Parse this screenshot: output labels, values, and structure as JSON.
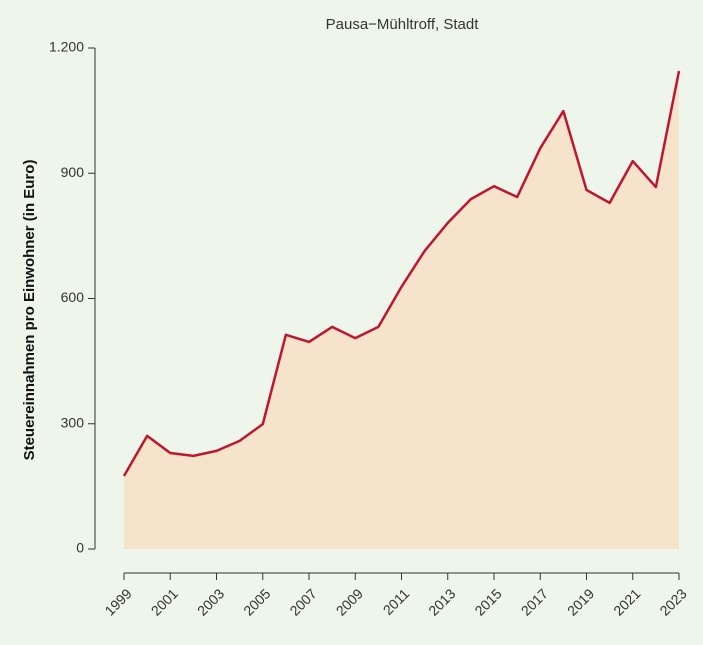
{
  "chart_data": {
    "type": "area",
    "title": "Pausa−Mühltroff, Stadt",
    "y_label": "Steuereinnahmen pro Einwohner (in Euro)",
    "x": [
      1999,
      2000,
      2001,
      2002,
      2003,
      2004,
      2005,
      2006,
      2007,
      2008,
      2009,
      2010,
      2011,
      2012,
      2013,
      2014,
      2015,
      2016,
      2017,
      2018,
      2019,
      2020,
      2021,
      2022,
      2023
    ],
    "series": [
      {
        "color": "#c0152f",
        "fill": "#f5e3cc",
        "values": [
          175,
          271,
          230,
          223,
          235,
          259,
          299,
          513,
          496,
          532,
          505,
          532,
          628,
          714,
          781,
          838,
          869,
          843,
          960,
          1049,
          860,
          829,
          929,
          867,
          1145
        ]
      }
    ],
    "xlim": [
      1999,
      2023
    ],
    "xticks": [
      1999,
      2001,
      2003,
      2005,
      2007,
      2009,
      2011,
      2013,
      2015,
      2017,
      2019,
      2021,
      2023
    ],
    "ylim": [
      0,
      1200
    ],
    "yticks": [
      0,
      300,
      600,
      900,
      {
        "value": 1200,
        "label": "1.200"
      }
    ]
  }
}
